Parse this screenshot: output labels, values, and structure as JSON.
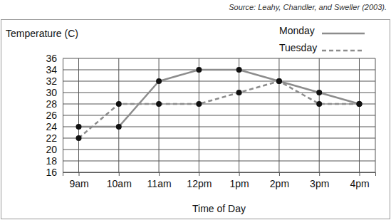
{
  "chart_data": {
    "type": "line",
    "annotations": [
      "Source: Leahy, Chandler, and Sweller (2003)."
    ],
    "y_label": "Temperature (C)",
    "x_label": "Time of Day",
    "categories": [
      "9am",
      "10am",
      "11am",
      "12pm",
      "1pm",
      "2pm",
      "3pm",
      "4pm"
    ],
    "series": [
      {
        "name": "Monday",
        "color": "#8c8c8c",
        "line_style": "solid",
        "marker": "circle",
        "values": [
          24,
          24,
          32,
          34,
          34,
          32,
          30,
          28
        ]
      },
      {
        "name": "Tuesday",
        "color": "#8c8c8c",
        "line_style": "dashed",
        "marker": "circle",
        "values": [
          22,
          28,
          28,
          28,
          30,
          32,
          28,
          28
        ]
      }
    ],
    "ylim": [
      16,
      36
    ],
    "yticks": [
      16,
      18,
      20,
      22,
      24,
      26,
      28,
      30,
      32,
      34,
      36
    ],
    "grid": true,
    "legend": "top-right"
  }
}
